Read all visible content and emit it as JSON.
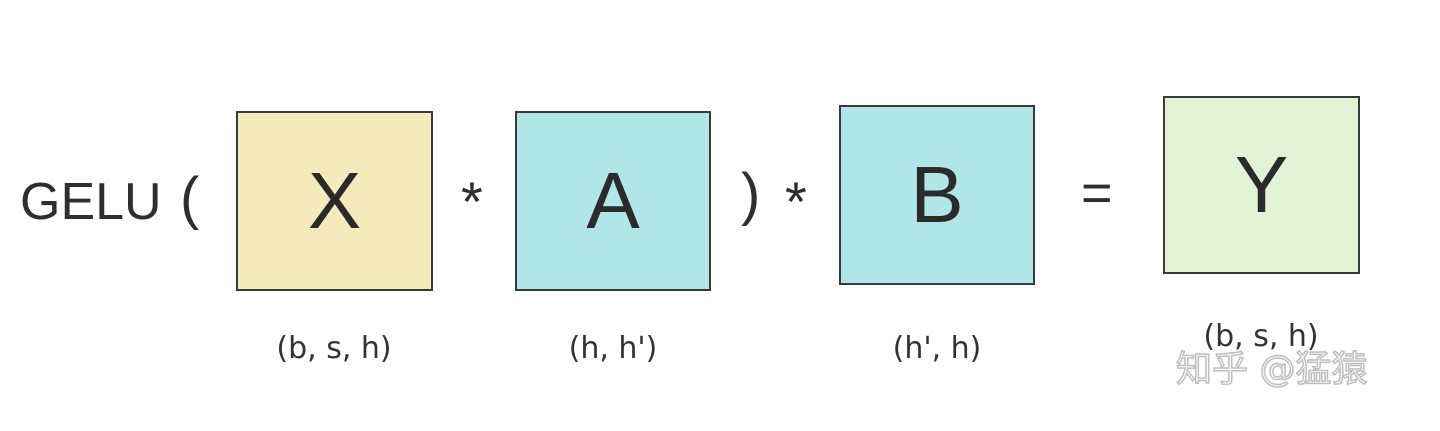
{
  "function_label": "GELU",
  "open_paren": "(",
  "close_paren": ")",
  "multiply_1": "*",
  "multiply_2": "*",
  "equals": "=",
  "matrices": {
    "x": {
      "letter": "X",
      "shape": "(b, s, h)",
      "fill": "#f5eabb"
    },
    "a": {
      "letter": "A",
      "shape": "(h, h')",
      "fill": "#b0e6e8"
    },
    "b": {
      "letter": "B",
      "shape": "(h', h)",
      "fill": "#b0e6e8"
    },
    "y": {
      "letter": "Y",
      "shape": "(b, s, h)",
      "fill": "#e2f2d5"
    }
  },
  "watermark": "知乎 @猛猿"
}
